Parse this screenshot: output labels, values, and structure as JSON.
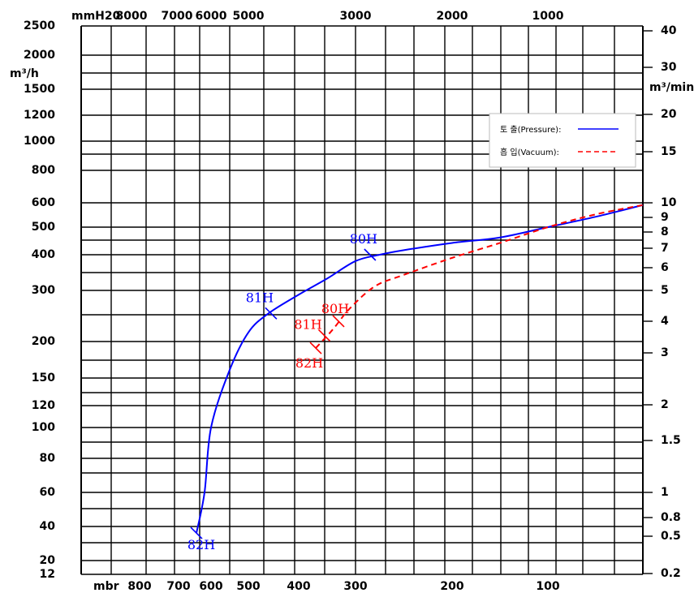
{
  "chart_data": {
    "type": "line",
    "left_unit": "m³/h",
    "right_unit": "m³/min",
    "top_unit": "mmH20",
    "bottom_unit": "mbr",
    "y_left_ticks": [
      "2500",
      "2000",
      "1500",
      "1200",
      "1000",
      "800",
      "600",
      "500",
      "400",
      "300",
      "200",
      "150",
      "120",
      "100",
      "80",
      "60",
      "40",
      "20",
      "12"
    ],
    "y_right_ticks": [
      "40",
      "30",
      "20",
      "15",
      "10",
      "9",
      "8",
      "7",
      "6",
      "5",
      "4",
      "3",
      "2",
      "1.5",
      "1",
      "0.8",
      "0.5",
      "0.2"
    ],
    "x_top_ticks": [
      "8000",
      "7000",
      "6000",
      "5000",
      "3000",
      "2000",
      "1000"
    ],
    "x_bottom_ticks": [
      "800",
      "700",
      "600",
      "500",
      "400",
      "300",
      "200",
      "100"
    ],
    "legend": [
      {
        "name": "토 출(Pressure):",
        "color": "#0000ff",
        "dash": "solid"
      },
      {
        "name": "흡 입(Vacuum):",
        "color": "#ff0000",
        "dash": "dashed"
      }
    ],
    "series": [
      {
        "name": "토 출(Pressure)",
        "color": "#0000ff",
        "x_mbr": [
          645,
          620,
          600,
          550,
          500,
          460,
          400,
          350,
          300,
          275,
          250,
          200,
          150,
          100,
          50,
          0
        ],
        "y_m3h": [
          35,
          60,
          100,
          160,
          215,
          250,
          290,
          330,
          380,
          400,
          415,
          440,
          460,
          500,
          540,
          590
        ]
      },
      {
        "name": "흡 입(Vacuum)",
        "color": "#ff0000",
        "x_mbr": [
          370,
          340,
          310,
          280,
          250,
          200,
          150,
          100,
          50,
          0
        ],
        "y_m3h": [
          190,
          220,
          260,
          310,
          340,
          390,
          440,
          500,
          550,
          590
        ]
      }
    ],
    "annotations": [
      {
        "text": "80H",
        "series": "토 출(Pressure)",
        "x_mbr": 285,
        "y_m3h": 400,
        "color": "#0000ff"
      },
      {
        "text": "81H",
        "series": "토 출(Pressure)",
        "x_mbr": 455,
        "y_m3h": 250,
        "color": "#0000ff"
      },
      {
        "text": "82H",
        "series": "토 출(Pressure)",
        "x_mbr": 645,
        "y_m3h": 35,
        "color": "#0000ff"
      },
      {
        "text": "80H",
        "series": "흡 입(Vacuum)",
        "x_mbr": 330,
        "y_m3h": 235,
        "color": "#ff0000"
      },
      {
        "text": "81H",
        "series": "흡 입(Vacuum)",
        "x_mbr": 355,
        "y_m3h": 210,
        "color": "#ff0000"
      },
      {
        "text": "82H",
        "series": "흡 입(Vacuum)",
        "x_mbr": 370,
        "y_m3h": 190,
        "color": "#ff0000"
      }
    ]
  }
}
